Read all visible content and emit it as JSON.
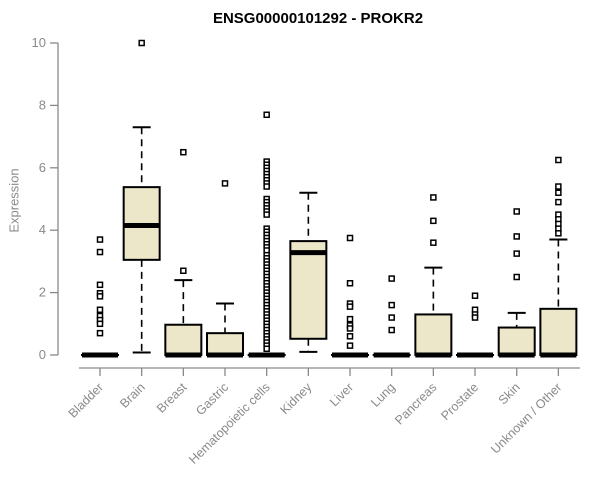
{
  "title": "ENSG00000101292 - PROKR2",
  "axes": {
    "y_label": "Expression",
    "y_ticks": [
      0,
      2,
      4,
      6,
      8,
      10
    ],
    "y_range": [
      0,
      10.2
    ],
    "grid": false,
    "legend": "none"
  },
  "colors": {
    "background": "#ffffff",
    "box_fill": "#ece7c8",
    "box_stroke": "#000000",
    "median": "#000000",
    "whisker": "#000000",
    "outlier_stroke": "#000000",
    "outlier_fill": "#ffffff",
    "axis": "#8a8a8a",
    "tick_label": "#8a8a8a",
    "title": "#000000"
  },
  "chart_data": {
    "type": "boxplot",
    "title": "ENSG00000101292 - PROKR2",
    "xlabel": "",
    "ylabel": "Expression",
    "ylim": [
      0,
      10.2
    ],
    "categories": [
      "Bladder",
      "Brain",
      "Breast",
      "Gastric",
      "Hematopoietic cells",
      "Kidney",
      "Liver",
      "Lung",
      "Pancreas",
      "Prostate",
      "Skin",
      "Unknown / Other"
    ],
    "groups": [
      {
        "category": "Bladder",
        "low": 0,
        "q1": 0,
        "median": 0,
        "q3": 0,
        "high": 0,
        "outliers": [
          3.7,
          3.3,
          2.25,
          1.98,
          1.88,
          1.45,
          1.25,
          1.12,
          1.0,
          0.7
        ]
      },
      {
        "category": "Brain",
        "low": 0.08,
        "q1": 3.05,
        "median": 4.15,
        "q3": 5.38,
        "high": 7.3,
        "outliers": [
          10.0
        ]
      },
      {
        "category": "Breast",
        "low": 0,
        "q1": 0,
        "median": 0,
        "q3": 0.97,
        "high": 2.4,
        "outliers": [
          6.5,
          2.7
        ]
      },
      {
        "category": "Gastric",
        "low": 0,
        "q1": 0,
        "median": 0,
        "q3": 0.7,
        "high": 1.65,
        "outliers": [
          5.5
        ]
      },
      {
        "category": "Hematopoietic cells",
        "low": 0,
        "q1": 0,
        "median": 0,
        "q3": 0,
        "high": 0,
        "outliers": [
          7.7,
          6.2,
          6.1,
          6.0,
          5.9,
          5.8,
          5.7,
          5.6,
          5.5,
          5.4,
          5.0,
          4.9,
          4.8,
          4.7,
          4.6,
          4.5,
          4.05,
          3.95,
          3.85,
          3.75,
          3.65,
          3.55,
          3.45,
          3.35,
          3.2,
          3.1,
          3.0,
          2.9,
          2.8,
          2.7,
          2.6,
          2.5,
          2.4,
          2.3,
          2.2,
          2.1,
          2.0,
          1.9,
          1.8,
          1.7,
          1.6,
          1.5,
          1.4,
          1.3,
          1.2,
          1.1,
          1.0,
          0.9,
          0.8,
          0.7,
          0.6,
          0.5,
          0.4,
          0.3,
          0.2
        ]
      },
      {
        "category": "Kidney",
        "low": 0.1,
        "q1": 0.52,
        "median": 3.28,
        "q3": 3.65,
        "high": 5.2,
        "outliers": []
      },
      {
        "category": "Liver",
        "low": 0,
        "q1": 0,
        "median": 0,
        "q3": 0,
        "high": 0,
        "outliers": [
          3.75,
          2.3,
          1.65,
          1.55,
          1.15,
          0.95,
          0.85,
          0.6,
          0.3
        ]
      },
      {
        "category": "Lung",
        "low": 0,
        "q1": 0,
        "median": 0,
        "q3": 0,
        "high": 0,
        "outliers": [
          2.45,
          1.6,
          1.2,
          0.8
        ]
      },
      {
        "category": "Pancreas",
        "low": 0,
        "q1": 0,
        "median": 0,
        "q3": 1.3,
        "high": 2.8,
        "outliers": [
          5.05,
          4.3,
          3.6
        ]
      },
      {
        "category": "Prostate",
        "low": 0,
        "q1": 0,
        "median": 0,
        "q3": 0,
        "high": 0,
        "outliers": [
          1.9,
          1.45,
          1.3,
          1.2
        ]
      },
      {
        "category": "Skin",
        "low": 0,
        "q1": 0,
        "median": 0,
        "q3": 0.88,
        "high": 1.35,
        "outliers": [
          4.6,
          3.8,
          3.25,
          2.5
        ]
      },
      {
        "category": "Unknown / Other",
        "low": 0,
        "q1": 0,
        "median": 0,
        "q3": 1.48,
        "high": 3.7,
        "outliers": [
          6.25,
          5.4,
          5.2,
          4.9,
          4.5,
          4.35,
          4.2,
          4.05,
          3.9
        ]
      }
    ]
  }
}
